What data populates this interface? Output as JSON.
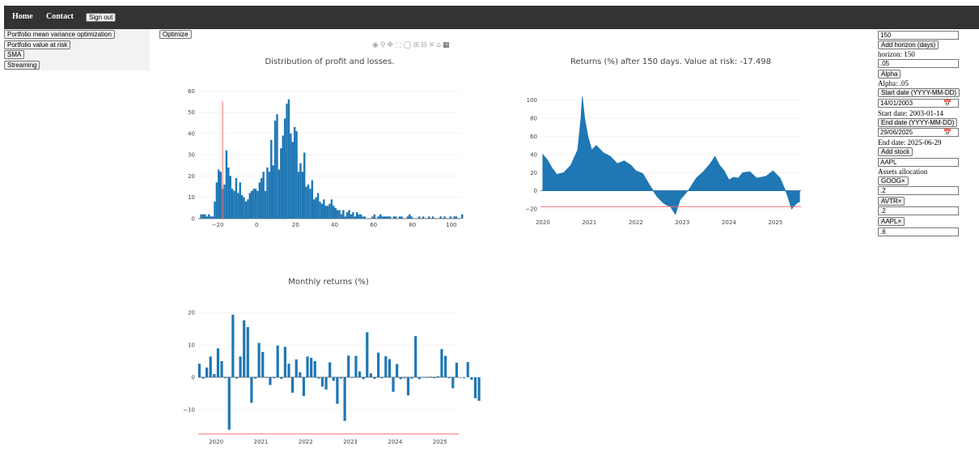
{
  "nav": {
    "home": "Home",
    "contact": "Contact",
    "signout": "Sign out"
  },
  "sidebar": {
    "items": [
      "Portfolio mean variance optimization",
      "Portfolio value at risk",
      "SMA",
      "Streaming"
    ]
  },
  "optimize_label": "Optimize",
  "right_panel": {
    "horizon_input": "150",
    "add_horizon_label": "Add horizon (days)",
    "horizon_text": "horizon: 150",
    "alpha_input": ".05",
    "alpha_label": "Alpha",
    "alpha_text": "Alpha: .05",
    "start_label": "Start date (YYYY-MM-DD)",
    "start_input": "14/01/2003",
    "start_text": "Start date: 2003-01-14",
    "end_label": "End date (YYYY-MM-DD)",
    "end_input": "29/06/2025",
    "end_text": "End date: 2025-06-29",
    "add_stock_label": "Add stock",
    "stock_input": "AAPL",
    "alloc_title": "Assets allocation",
    "assets": [
      {
        "label": "GOOG×",
        "value": ".2"
      },
      {
        "label": "AVTR×",
        "value": ".2"
      },
      {
        "label": "AAPL×",
        "value": ".6"
      }
    ]
  },
  "modebar": {
    "icons": [
      "camera-icon",
      "zoom-icon",
      "pan-icon",
      "box-select-icon",
      "lasso-icon",
      "zoom-in-icon",
      "zoom-out-icon",
      "autoscale-icon",
      "home-icon",
      "plotly-logo-icon"
    ]
  },
  "colors": {
    "bar": "#1f77b4",
    "var_line": "#ff6b6b",
    "topbar": "#333333",
    "grid": "#eeeeee"
  },
  "chart_data": [
    {
      "type": "bar",
      "title": "Distribution of profit and losses.",
      "xlim": [
        -30,
        105
      ],
      "ylim": [
        0,
        62
      ],
      "xticks": [
        "−20",
        "0",
        "20",
        "40",
        "60",
        "80",
        "100"
      ],
      "yticks": [
        "0",
        "10",
        "20",
        "30",
        "40",
        "50",
        "60"
      ],
      "bin_start": -29,
      "bin_width": 1,
      "values": [
        2,
        2,
        2,
        1,
        2,
        1,
        1,
        8,
        17,
        23,
        22,
        14,
        16,
        32,
        24,
        20,
        14,
        13,
        19,
        12,
        17,
        11,
        10,
        8,
        9,
        12,
        13,
        14,
        14,
        13,
        17,
        19,
        22,
        13,
        24,
        22,
        37,
        25,
        46,
        49,
        23,
        33,
        39,
        47,
        54,
        56,
        40,
        36,
        43,
        41,
        22,
        26,
        22,
        31,
        15,
        16,
        14,
        18,
        9,
        10,
        12,
        8,
        7,
        9,
        6,
        6,
        7,
        9,
        6,
        5,
        4,
        4,
        2,
        4,
        1,
        3,
        4,
        2,
        3,
        1,
        3,
        2,
        2,
        1,
        1,
        0,
        0,
        0,
        1,
        2,
        0,
        1,
        2,
        1,
        1,
        1,
        1,
        1,
        0,
        1,
        1,
        0,
        1,
        1,
        0,
        0,
        1,
        2,
        1,
        0,
        0,
        0,
        1,
        0,
        1,
        0,
        0,
        1,
        0,
        1,
        0,
        0,
        0,
        1,
        0,
        1,
        0,
        0,
        1,
        0,
        1,
        1,
        0,
        0,
        2
      ],
      "var_line": {
        "x": -17.5,
        "y_top": 55
      }
    },
    {
      "type": "area",
      "title": "Returns (%) after 150 days. Value at risk: -17.498",
      "xlim": [
        2019.95,
        2025.55
      ],
      "ylim": [
        -28,
        106
      ],
      "xticks": [
        "2020",
        "2021",
        "2022",
        "2023",
        "2024",
        "2025"
      ],
      "yticks": [
        "−20",
        "0",
        "20",
        "40",
        "60",
        "80",
        "100"
      ],
      "points": [
        [
          2020.0,
          40
        ],
        [
          2020.1,
          34
        ],
        [
          2020.2,
          25
        ],
        [
          2020.3,
          18
        ],
        [
          2020.45,
          20
        ],
        [
          2020.6,
          28
        ],
        [
          2020.75,
          45
        ],
        [
          2020.82,
          80
        ],
        [
          2020.85,
          104
        ],
        [
          2020.9,
          80
        ],
        [
          2020.97,
          60
        ],
        [
          2021.05,
          45
        ],
        [
          2021.15,
          50
        ],
        [
          2021.3,
          42
        ],
        [
          2021.45,
          38
        ],
        [
          2021.6,
          30
        ],
        [
          2021.75,
          33
        ],
        [
          2021.9,
          28
        ],
        [
          2022.0,
          22
        ],
        [
          2022.15,
          19
        ],
        [
          2022.3,
          6
        ],
        [
          2022.45,
          -6
        ],
        [
          2022.6,
          -14
        ],
        [
          2022.75,
          -18
        ],
        [
          2022.85,
          -26
        ],
        [
          2022.95,
          -10
        ],
        [
          2023.05,
          -4
        ],
        [
          2023.15,
          2
        ],
        [
          2023.3,
          14
        ],
        [
          2023.45,
          21
        ],
        [
          2023.6,
          30
        ],
        [
          2023.7,
          38
        ],
        [
          2023.8,
          28
        ],
        [
          2023.9,
          22
        ],
        [
          2024.0,
          12
        ],
        [
          2024.1,
          15
        ],
        [
          2024.2,
          14
        ],
        [
          2024.3,
          20
        ],
        [
          2024.45,
          21
        ],
        [
          2024.6,
          14
        ],
        [
          2024.8,
          16
        ],
        [
          2024.95,
          22
        ],
        [
          2025.1,
          14
        ],
        [
          2025.25,
          -4
        ],
        [
          2025.35,
          -20
        ],
        [
          2025.45,
          -14
        ],
        [
          2025.52,
          -12
        ]
      ],
      "var_line": {
        "y": -17.498
      }
    },
    {
      "type": "bar",
      "title": "Monthly returns (%)",
      "xlim": [
        2019.6,
        2025.42
      ],
      "ylim": [
        -18,
        22
      ],
      "xticks": [
        "2020",
        "2021",
        "2022",
        "2023",
        "2024",
        "2025"
      ],
      "yticks": [
        "−10",
        "0",
        "10",
        "20"
      ],
      "x_start": 2019.625,
      "x_step": 0.0833,
      "values": [
        4.2,
        -0.4,
        3.0,
        6.4,
        1.0,
        8.9,
        5.0,
        -0.3,
        -16.2,
        19.3,
        -0.4,
        6.4,
        17.6,
        15.5,
        -7.9,
        -0.4,
        10.6,
        7.8,
        -0.2,
        -2.4,
        -0.3,
        9.8,
        -0.5,
        9.4,
        4.2,
        -4.8,
        5.5,
        1.5,
        -5.8,
        6.4,
        6.0,
        5.0,
        -0.4,
        -2.9,
        -3.8,
        4.6,
        -1.1,
        -8.2,
        -0.4,
        -13.5,
        6.7,
        -0.2,
        6.6,
        1.8,
        -0.6,
        13.9,
        1.2,
        -0.5,
        7.6,
        -0.3,
        6.5,
        5.6,
        -4.5,
        4.1,
        -0.6,
        -0.3,
        -5.6,
        -0.4,
        12.7,
        -0.6,
        -0.1,
        -0.2,
        0.2,
        -0.3,
        0.3,
        8.7,
        6.6,
        -0.3,
        -3.4,
        4.5,
        -0.2,
        -0.3,
        4.7,
        -0.8,
        -6.5,
        -7.3,
        -5.9
      ],
      "var_line": {
        "y": -17.5
      }
    }
  ]
}
